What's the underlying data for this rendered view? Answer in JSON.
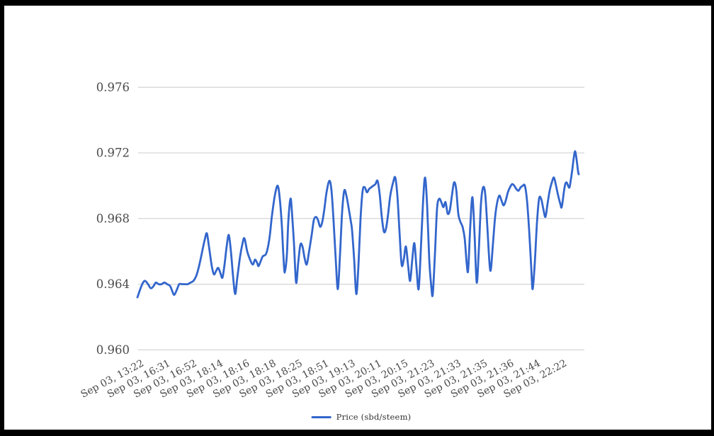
{
  "figure": {
    "background": "#ffffff",
    "frame_color": "#000000",
    "gridline_color": "#cccccc",
    "axis_label_color": "#4a4a4a"
  },
  "legend": {
    "label": "Price (sbd/steem)"
  },
  "chart_data": {
    "type": "line",
    "title": "",
    "xlabel": "",
    "ylabel": "",
    "grid": true,
    "legend_position": "bottom",
    "ylim": [
      0.96,
      0.976
    ],
    "y_tick_values": [
      0.976,
      0.972,
      0.968,
      0.964,
      0.96
    ],
    "y_tick_labels": [
      "0.976",
      "0.972",
      "0.968",
      "0.964",
      "0.960"
    ],
    "x_tick_labels": [
      "Sep 03, 13:22",
      "Sep 03, 16:31",
      "Sep 03, 16:52",
      "Sep 03, 18:14",
      "Sep 03, 18:16",
      "Sep 03, 18:18",
      "Sep 03, 18:25",
      "Sep 03, 18:51",
      "Sep 03, 19:13",
      "Sep 03, 20:11",
      "Sep 03, 20:15",
      "Sep 03, 21:23",
      "Sep 03, 21:33",
      "Sep 03, 21:35",
      "Sep 03, 21:36",
      "Sep 03, 21:44",
      "Sep 03, 22:22"
    ],
    "series": [
      {
        "name": "Price (sbd/steem)",
        "color": "#3366cc",
        "points": [
          [
            194,
            0.9632
          ],
          [
            198,
            0.9637
          ],
          [
            202,
            0.9641
          ],
          [
            205,
            0.9642
          ],
          [
            209,
            0.964
          ],
          [
            213,
            0.96375
          ],
          [
            217,
            0.9639
          ],
          [
            220,
            0.9641
          ],
          [
            224,
            0.964
          ],
          [
            228,
            0.964
          ],
          [
            232,
            0.9641
          ],
          [
            236,
            0.964
          ],
          [
            240,
            0.9639
          ],
          [
            243,
            0.9636
          ],
          [
            246,
            0.96335
          ],
          [
            250,
            0.9637
          ],
          [
            253,
            0.964
          ],
          [
            257,
            0.964
          ],
          [
            261,
            0.964
          ],
          [
            265,
            0.964
          ],
          [
            269,
            0.9641
          ],
          [
            273,
            0.9642
          ],
          [
            277,
            0.9645
          ],
          [
            281,
            0.9651
          ],
          [
            285,
            0.9659
          ],
          [
            289,
            0.9667
          ],
          [
            292,
            0.9671
          ],
          [
            295,
            0.9663
          ],
          [
            299,
            0.9651
          ],
          [
            302,
            0.9646
          ],
          [
            305,
            0.9648
          ],
          [
            308,
            0.965
          ],
          [
            311,
            0.9647
          ],
          [
            314,
            0.9644
          ],
          [
            317,
            0.9652
          ],
          [
            320,
            0.9663
          ],
          [
            323,
            0.967
          ],
          [
            326,
            0.966
          ],
          [
            329,
            0.9645
          ],
          [
            332,
            0.9634
          ],
          [
            335,
            0.9644
          ],
          [
            339,
            0.9657
          ],
          [
            342,
            0.9664
          ],
          [
            345,
            0.9668
          ],
          [
            349,
            0.966
          ],
          [
            353,
            0.9655
          ],
          [
            357,
            0.9652
          ],
          [
            360,
            0.9655
          ],
          [
            363,
            0.9653
          ],
          [
            365,
            0.9651
          ],
          [
            368,
            0.9654
          ],
          [
            371,
            0.9657
          ],
          [
            375,
            0.9658
          ],
          [
            378,
            0.9662
          ],
          [
            381,
            0.967
          ],
          [
            384,
            0.9682
          ],
          [
            388,
            0.9694
          ],
          [
            392,
            0.97
          ],
          [
            395,
            0.9692
          ],
          [
            398,
            0.9675
          ],
          [
            400,
            0.9658
          ],
          [
            402,
            0.9647
          ],
          [
            405,
            0.9658
          ],
          [
            407,
            0.9678
          ],
          [
            410,
            0.9692
          ],
          [
            412,
            0.9685
          ],
          [
            415,
            0.9665
          ],
          [
            418,
            0.9641
          ],
          [
            421,
            0.9653
          ],
          [
            424,
            0.9664
          ],
          [
            427,
            0.9663
          ],
          [
            430,
            0.9656
          ],
          [
            433,
            0.9652
          ],
          [
            436,
            0.9659
          ],
          [
            440,
            0.967
          ],
          [
            443,
            0.9679
          ],
          [
            446,
            0.9681
          ],
          [
            449,
            0.9679
          ],
          [
            452,
            0.9675
          ],
          [
            455,
            0.9678
          ],
          [
            458,
            0.9686
          ],
          [
            461,
            0.9696
          ],
          [
            465,
            0.9703
          ],
          [
            468,
            0.9697
          ],
          [
            471,
            0.9678
          ],
          [
            474,
            0.9655
          ],
          [
            477,
            0.9637
          ],
          [
            480,
            0.9658
          ],
          [
            483,
            0.9684
          ],
          [
            486,
            0.9697
          ],
          [
            489,
            0.9694
          ],
          [
            492,
            0.9687
          ],
          [
            495,
            0.9679
          ],
          [
            497,
            0.9673
          ],
          [
            500,
            0.9655
          ],
          [
            503,
            0.9634
          ],
          [
            506,
            0.9651
          ],
          [
            509,
            0.968
          ],
          [
            512,
            0.9697
          ],
          [
            515,
            0.9699
          ],
          [
            518,
            0.9696
          ],
          [
            521,
            0.9698
          ],
          [
            524,
            0.9699
          ],
          [
            527,
            0.97
          ],
          [
            530,
            0.9701
          ],
          [
            533,
            0.9703
          ],
          [
            536,
            0.9695
          ],
          [
            539,
            0.9681
          ],
          [
            542,
            0.9672
          ],
          [
            545,
            0.9674
          ],
          [
            548,
            0.9683
          ],
          [
            551,
            0.9694
          ],
          [
            555,
            0.9702
          ],
          [
            558,
            0.9705
          ],
          [
            561,
            0.9694
          ],
          [
            564,
            0.9672
          ],
          [
            567,
            0.9652
          ],
          [
            570,
            0.9655
          ],
          [
            573,
            0.9663
          ],
          [
            576,
            0.9652
          ],
          [
            579,
            0.9642
          ],
          [
            582,
            0.9655
          ],
          [
            585,
            0.9665
          ],
          [
            588,
            0.965
          ],
          [
            591,
            0.9637
          ],
          [
            594,
            0.966
          ],
          [
            597,
            0.9688
          ],
          [
            600,
            0.9705
          ],
          [
            603,
            0.9688
          ],
          [
            606,
            0.9655
          ],
          [
            609,
            0.9638
          ],
          [
            611,
            0.9634
          ],
          [
            614,
            0.9658
          ],
          [
            617,
            0.9686
          ],
          [
            620,
            0.9692
          ],
          [
            623,
            0.969
          ],
          [
            626,
            0.9687
          ],
          [
            629,
            0.969
          ],
          [
            632,
            0.9683
          ],
          [
            635,
            0.9685
          ],
          [
            638,
            0.9694
          ],
          [
            641,
            0.9702
          ],
          [
            644,
            0.9698
          ],
          [
            647,
            0.9683
          ],
          [
            650,
            0.9678
          ],
          [
            653,
            0.9675
          ],
          [
            656,
            0.9668
          ],
          [
            659,
            0.9652
          ],
          [
            661,
            0.9649
          ],
          [
            664,
            0.9676
          ],
          [
            667,
            0.9693
          ],
          [
            670,
            0.967
          ],
          [
            673,
            0.9641
          ],
          [
            676,
            0.9661
          ],
          [
            679,
            0.9689
          ],
          [
            682,
            0.9699
          ],
          [
            685,
            0.9695
          ],
          [
            688,
            0.9675
          ],
          [
            691,
            0.9653
          ],
          [
            693,
            0.9649
          ],
          [
            696,
            0.9665
          ],
          [
            699,
            0.9681
          ],
          [
            702,
            0.969
          ],
          [
            705,
            0.9694
          ],
          [
            708,
            0.9691
          ],
          [
            711,
            0.9688
          ],
          [
            714,
            0.9691
          ],
          [
            717,
            0.9696
          ],
          [
            720,
            0.9699
          ],
          [
            723,
            0.9701
          ],
          [
            726,
            0.97
          ],
          [
            729,
            0.9698
          ],
          [
            732,
            0.9697
          ],
          [
            735,
            0.9699
          ],
          [
            738,
            0.97
          ],
          [
            741,
            0.97
          ],
          [
            744,
            0.9691
          ],
          [
            747,
            0.9673
          ],
          [
            750,
            0.965
          ],
          [
            752,
            0.9637
          ],
          [
            755,
            0.9653
          ],
          [
            758,
            0.9677
          ],
          [
            761,
            0.9692
          ],
          [
            764,
            0.9692
          ],
          [
            767,
            0.9686
          ],
          [
            770,
            0.9681
          ],
          [
            773,
            0.9689
          ],
          [
            776,
            0.9697
          ],
          [
            779,
            0.9702
          ],
          [
            782,
            0.9705
          ],
          [
            785,
            0.97
          ],
          [
            788,
            0.9694
          ],
          [
            791,
            0.9689
          ],
          [
            793,
            0.9687
          ],
          [
            796,
            0.9696
          ],
          [
            798,
            0.9701
          ],
          [
            800,
            0.9702
          ],
          [
            802,
            0.97
          ],
          [
            804,
            0.9699
          ],
          [
            806,
            0.9704
          ],
          [
            808,
            0.971
          ],
          [
            810,
            0.9717
          ],
          [
            812,
            0.9721
          ],
          [
            814,
            0.9716
          ],
          [
            816,
            0.9709
          ],
          [
            817,
            0.9707
          ]
        ]
      }
    ]
  }
}
